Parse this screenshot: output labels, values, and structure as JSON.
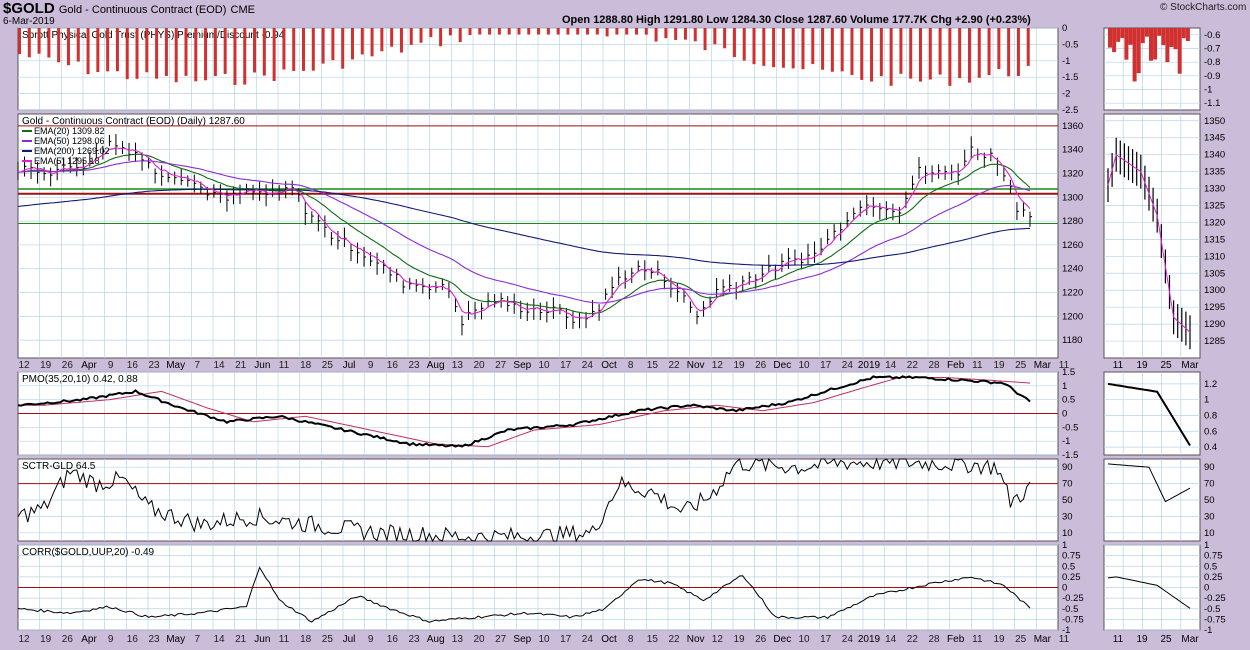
{
  "header": {
    "symbol": "$GOLD",
    "name": "Gold - Continuous Contract (EOD)",
    "exchange": "CME",
    "date": "6-Mar-2019",
    "ohlc": "Open 1288.80  High 1291.80  Low 1284.30  Close 1287.60  Volume 177.7K  Chg +2.90 (+0.23%)",
    "brand": "© StockCharts.com"
  },
  "colors": {
    "background": "#cbbcd9",
    "panel": "#ffffff",
    "grid": "#b9d3e6",
    "bars": "#000000",
    "ema20": "#136b13",
    "ema50": "#8a2bd6",
    "ema200": "#141a78",
    "ema5": "#e020d0",
    "hline_red": "#a01010",
    "hline_green": "#1a8a1a",
    "premium_bar": "#d03030",
    "pmo_signal": "#c03060"
  },
  "x_axis": {
    "main_labels": [
      "12",
      "19",
      "26",
      "Apr",
      "9",
      "16",
      "23",
      "May",
      "7",
      "14",
      "21",
      "Jun",
      "11",
      "18",
      "25",
      "Jul",
      "9",
      "16",
      "23",
      "Aug",
      "13",
      "20",
      "27",
      "Sep",
      "10",
      "17",
      "24",
      "Oct",
      "8",
      "15",
      "22",
      "Nov",
      "12",
      "19",
      "26",
      "Dec",
      "10",
      "17",
      "24",
      "2019",
      "14",
      "22",
      "28",
      "Feb",
      "11",
      "19",
      "25",
      "Mar",
      "11"
    ],
    "zoom_labels": [
      "11",
      "19",
      "25",
      "Mar"
    ]
  },
  "chart_data": [
    {
      "type": "bar",
      "title": "Sprott Physical Gold Trust (PHYS) Premium/Discount -0.94",
      "series": [
        {
          "name": "Sprott Physical Gold Trust (PHYS) Premium/Discount",
          "last": -0.94
        }
      ],
      "ylim": [
        -2.5,
        0.0
      ],
      "yticks": [
        0.0,
        -0.5,
        -1.0,
        -1.5,
        -2.0,
        -2.5
      ],
      "zoom_yticks": [
        -0.6,
        -0.7,
        -0.8,
        -0.9,
        -1.0,
        -1.1
      ]
    },
    {
      "type": "line",
      "title": "Gold - Continuous Contract (EOD) (Daily) 1287.60",
      "series": [
        {
          "name": "EMA(20)",
          "last": 1309.82
        },
        {
          "name": "EMA(50)",
          "last": 1298.06
        },
        {
          "name": "EMA(200)",
          "last": 1269.02
        },
        {
          "name": "EMA(5)",
          "last": 1295.18
        }
      ],
      "ylim": [
        1165,
        1370
      ],
      "yticks": [
        1360,
        1340,
        1320,
        1300,
        1280,
        1260,
        1240,
        1220,
        1200,
        1180
      ],
      "zoom_ylim": [
        1280,
        1352
      ],
      "zoom_yticks": [
        1350,
        1345,
        1340,
        1335,
        1330,
        1325,
        1320,
        1315,
        1310,
        1305,
        1300,
        1295,
        1290,
        1285
      ],
      "hlines": [
        1360,
        1303,
        1278
      ],
      "keypoints": [
        [
          0,
          1325
        ],
        [
          10,
          1322
        ],
        [
          20,
          1328
        ],
        [
          28,
          1346
        ],
        [
          36,
          1338
        ],
        [
          42,
          1322
        ],
        [
          50,
          1318
        ],
        [
          58,
          1305
        ],
        [
          64,
          1298
        ],
        [
          70,
          1305
        ],
        [
          78,
          1302
        ],
        [
          84,
          1308
        ],
        [
          88,
          1290
        ],
        [
          96,
          1268
        ],
        [
          104,
          1256
        ],
        [
          112,
          1240
        ],
        [
          118,
          1228
        ],
        [
          126,
          1226
        ],
        [
          132,
          1222
        ],
        [
          136,
          1196
        ],
        [
          140,
          1205
        ],
        [
          146,
          1214
        ],
        [
          152,
          1208
        ],
        [
          160,
          1205
        ],
        [
          166,
          1204
        ],
        [
          172,
          1195
        ],
        [
          178,
          1208
        ],
        [
          184,
          1232
        ],
        [
          190,
          1240
        ],
        [
          196,
          1236
        ],
        [
          202,
          1222
        ],
        [
          208,
          1200
        ],
        [
          214,
          1222
        ],
        [
          220,
          1228
        ],
        [
          228,
          1236
        ],
        [
          236,
          1246
        ],
        [
          244,
          1252
        ],
        [
          250,
          1270
        ],
        [
          256,
          1290
        ],
        [
          262,
          1295
        ],
        [
          270,
          1290
        ],
        [
          276,
          1322
        ],
        [
          282,
          1320
        ],
        [
          288,
          1322
        ],
        [
          292,
          1340
        ],
        [
          298,
          1335
        ],
        [
          302,
          1322
        ],
        [
          306,
          1292
        ],
        [
          310,
          1287.6
        ]
      ]
    },
    {
      "type": "line",
      "title": "PMO(35,20,10) 0.42, 0.88",
      "series": [
        {
          "name": "PMO(35,20,10)",
          "last": 0.42
        },
        {
          "name": "Signal",
          "last": 0.88
        }
      ],
      "ylim": [
        -1.5,
        1.5
      ],
      "yticks": [
        1.5,
        1.0,
        0.5,
        0.0,
        -0.5,
        -1.0,
        -1.5
      ],
      "zoom_yticks": [
        1.2,
        1.0,
        0.8,
        0.6,
        0.4
      ],
      "hlines": [
        0.0
      ],
      "keypoints": [
        [
          0,
          0.3
        ],
        [
          20,
          0.5
        ],
        [
          36,
          0.8
        ],
        [
          50,
          0.2
        ],
        [
          64,
          -0.3
        ],
        [
          80,
          -0.1
        ],
        [
          100,
          -0.6
        ],
        [
          120,
          -1.1
        ],
        [
          136,
          -1.2
        ],
        [
          150,
          -0.6
        ],
        [
          170,
          -0.4
        ],
        [
          190,
          0.1
        ],
        [
          206,
          0.3
        ],
        [
          220,
          0.1
        ],
        [
          236,
          0.4
        ],
        [
          250,
          0.9
        ],
        [
          262,
          1.3
        ],
        [
          276,
          1.3
        ],
        [
          290,
          1.2
        ],
        [
          302,
          1.1
        ],
        [
          310,
          0.42
        ]
      ]
    },
    {
      "type": "line",
      "title": "SCTR-GLD 64.5",
      "series": [
        {
          "name": "SCTR-GLD",
          "last": 64.5
        }
      ],
      "ylim": [
        0,
        100
      ],
      "yticks": [
        90,
        70,
        50,
        30,
        10
      ],
      "zoom_yticks": [
        90,
        70,
        50,
        30,
        10
      ],
      "hlines": [
        70
      ],
      "keypoints": [
        [
          0,
          30
        ],
        [
          8,
          40
        ],
        [
          16,
          85
        ],
        [
          24,
          70
        ],
        [
          32,
          75
        ],
        [
          40,
          40
        ],
        [
          56,
          20
        ],
        [
          72,
          30
        ],
        [
          90,
          20
        ],
        [
          110,
          10
        ],
        [
          140,
          5
        ],
        [
          160,
          6
        ],
        [
          176,
          10
        ],
        [
          184,
          70
        ],
        [
          194,
          60
        ],
        [
          204,
          35
        ],
        [
          212,
          55
        ],
        [
          220,
          95
        ],
        [
          240,
          90
        ],
        [
          252,
          96
        ],
        [
          270,
          96
        ],
        [
          290,
          94
        ],
        [
          300,
          90
        ],
        [
          304,
          48
        ],
        [
          310,
          64.5
        ]
      ]
    },
    {
      "type": "line",
      "title": "CORR($GOLD,UUP,20) -0.49",
      "series": [
        {
          "name": "CORR($GOLD,UUP,20)",
          "last": -0.49
        }
      ],
      "ylim": [
        -1.0,
        1.0
      ],
      "yticks": [
        1.0,
        0.75,
        0.5,
        0.25,
        0.0,
        -0.25,
        -0.5,
        -0.75,
        -1.0
      ],
      "zoom_yticks": [
        1.0,
        0.75,
        0.5,
        0.25,
        0.0,
        -0.25,
        -0.5,
        -0.75,
        -1.0
      ],
      "hlines": [
        0.0
      ],
      "keypoints": [
        [
          0,
          -0.5
        ],
        [
          16,
          -0.6
        ],
        [
          28,
          -0.45
        ],
        [
          40,
          -0.7
        ],
        [
          56,
          -0.6
        ],
        [
          70,
          -0.45
        ],
        [
          74,
          0.5
        ],
        [
          80,
          -0.3
        ],
        [
          90,
          -0.8
        ],
        [
          104,
          -0.2
        ],
        [
          114,
          -0.5
        ],
        [
          126,
          -0.8
        ],
        [
          140,
          -0.7
        ],
        [
          156,
          -0.6
        ],
        [
          170,
          -0.7
        ],
        [
          180,
          -0.5
        ],
        [
          190,
          0.2
        ],
        [
          200,
          0.1
        ],
        [
          210,
          -0.3
        ],
        [
          222,
          0.3
        ],
        [
          232,
          -0.7
        ],
        [
          248,
          -0.7
        ],
        [
          262,
          -0.2
        ],
        [
          280,
          0.1
        ],
        [
          292,
          0.25
        ],
        [
          302,
          0.05
        ],
        [
          310,
          -0.49
        ]
      ]
    }
  ]
}
